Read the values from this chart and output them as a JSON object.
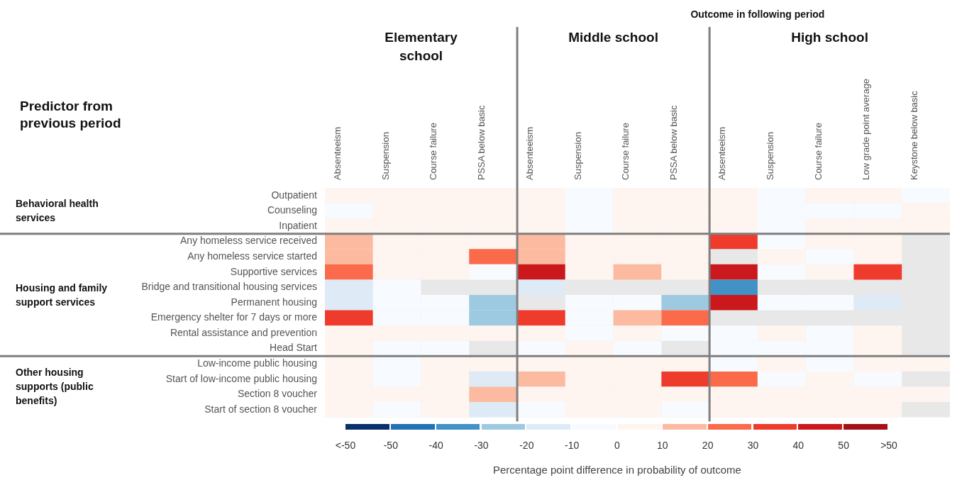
{
  "chart_data": {
    "type": "heatmap",
    "title": "Outcome in following period",
    "ylabel": "Predictor from previous period",
    "clabel": "Percentage point difference in probability of outcome",
    "annotations": [
      "Elementary school",
      "Middle school",
      "High school",
      "Behavioral health services",
      "Housing and family support services",
      "Other housing supports (public benefits)"
    ],
    "categories": [
      "Absenteeism",
      "Suspension",
      "Course failure",
      "PSSA below basic",
      "Absenteeism",
      "Suspension",
      "Course failure",
      "PSSA below basic",
      "Absenteeism",
      "Suspension",
      "Course failure",
      "Low grade point average",
      "Keystone below basic"
    ],
    "y_categories": [
      "Outpatient",
      "Counseling",
      "Inpatient",
      "Any homeless service received",
      "Any homeless service started",
      "Supportive services",
      "Bridge and transitional housing services",
      "Permanent housing",
      "Emergency shelter for 7 days or more",
      "Rental assistance and prevention",
      "Head Start",
      "Low-income public housing",
      "Start of low-income public housing",
      "Section 8 voucher",
      "Start of section 8 voucher"
    ],
    "cells": [
      [
        5,
        5,
        5,
        5,
        5,
        -5,
        5,
        5,
        5,
        -5,
        5,
        5,
        -5
      ],
      [
        -5,
        5,
        5,
        5,
        5,
        -5,
        5,
        5,
        5,
        -5,
        -5,
        -5,
        5
      ],
      [
        5,
        5,
        5,
        5,
        5,
        -5,
        5,
        5,
        5,
        -5,
        5,
        5,
        5
      ],
      [
        15,
        5,
        5,
        5,
        15,
        5,
        5,
        5,
        35,
        -5,
        5,
        5,
        null
      ],
      [
        15,
        5,
        5,
        25,
        15,
        5,
        5,
        5,
        null,
        5,
        -5,
        5,
        null
      ],
      [
        25,
        5,
        5,
        -5,
        45,
        5,
        15,
        5,
        45,
        -5,
        5,
        35,
        null
      ],
      [
        -15,
        -5,
        null,
        null,
        -15,
        null,
        null,
        null,
        -35,
        null,
        null,
        null,
        null
      ],
      [
        -15,
        -5,
        -5,
        -25,
        null,
        -5,
        -5,
        -25,
        45,
        -5,
        -5,
        -15,
        null
      ],
      [
        35,
        -5,
        -5,
        -25,
        35,
        -5,
        15,
        25,
        null,
        null,
        null,
        null,
        null
      ],
      [
        5,
        5,
        5,
        5,
        5,
        -5,
        5,
        -5,
        -5,
        5,
        -5,
        5,
        null
      ],
      [
        5,
        -5,
        -5,
        null,
        -5,
        5,
        -5,
        null,
        -5,
        -5,
        -5,
        5,
        null
      ],
      [
        5,
        -5,
        5,
        5,
        5,
        5,
        5,
        5,
        -5,
        5,
        -5,
        5,
        5
      ],
      [
        5,
        -5,
        5,
        -15,
        15,
        5,
        5,
        35,
        25,
        -5,
        5,
        -5,
        null
      ],
      [
        5,
        5,
        5,
        15,
        5,
        5,
        5,
        5,
        5,
        5,
        5,
        5,
        5
      ],
      [
        5,
        -5,
        5,
        -15,
        -5,
        5,
        5,
        -5,
        5,
        5,
        5,
        5,
        null
      ]
    ],
    "clim": [
      -60,
      60
    ],
    "cticks": [
      {
        "value": -60,
        "label": "<-50"
      },
      -50,
      -40,
      -30,
      -20,
      -10,
      0,
      10,
      20,
      30,
      40,
      50,
      {
        "value": 60,
        "label": ">50"
      }
    ],
    "colors": [
      "#08306b",
      "#2171b5",
      "#4292c6",
      "#9ecae1",
      "#deebf7",
      "#f7fbff",
      "#fff5f0",
      "#fcbba1",
      "#fb6a4a",
      "#ef3b2c",
      "#cb181d",
      "#a50f15"
    ]
  }
}
